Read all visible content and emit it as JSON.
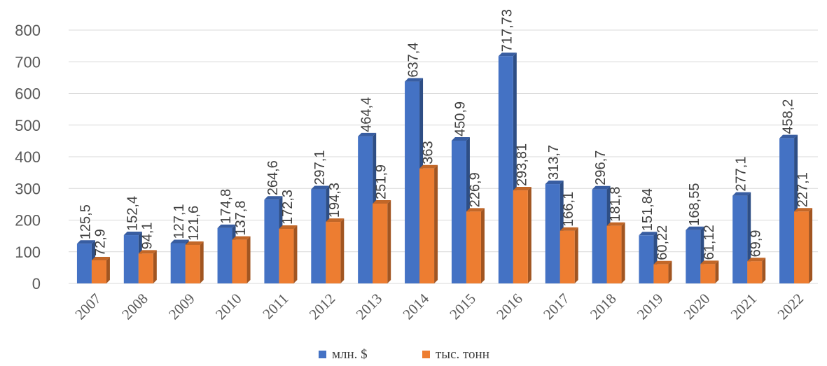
{
  "chart_data": {
    "type": "bar",
    "title": "",
    "xlabel": "",
    "ylabel": "",
    "ylim": [
      0,
      800
    ],
    "yticks": [
      "0",
      "100",
      "200",
      "300",
      "400",
      "500",
      "600",
      "700",
      "800"
    ],
    "grid": true,
    "legend_position": "bottom",
    "categories": [
      "2007",
      "2008",
      "2009",
      "2010",
      "2011",
      "2012",
      "2013",
      "2014",
      "2015",
      "2016",
      "2017",
      "2018",
      "2019",
      "2020",
      "2021",
      "2022"
    ],
    "series": [
      {
        "name": "млн. $",
        "color": "#4472c4",
        "values": [
          125.5,
          152.4,
          127.1,
          174.8,
          264.6,
          297.1,
          464.4,
          637.4,
          450.9,
          717.73,
          313.7,
          296.7,
          151.84,
          168.55,
          277.1,
          458.2
        ],
        "labels": [
          "125,5",
          "152,4",
          "127,1",
          "174,8",
          "264,6",
          "297,1",
          "464,4",
          "637,4",
          "450,9",
          "717,73",
          "313,7",
          "296,7",
          "151,84",
          "168,55",
          "277,1",
          "458,2"
        ]
      },
      {
        "name": "тыс. тонн",
        "color": "#ed7d31",
        "values": [
          72.9,
          94.1,
          121.6,
          137.8,
          172.3,
          194.3,
          251.9,
          363,
          226.9,
          293.81,
          166.1,
          181.8,
          60.22,
          61.12,
          69.9,
          227.1
        ],
        "labels": [
          "72,9",
          "94,1",
          "121,6",
          "137,8",
          "172,3",
          "194,3",
          "251,9",
          "363",
          "226,9",
          "293,81",
          "166,1",
          "181,8",
          "60,22",
          "61,12",
          "69,9",
          "227,1"
        ]
      }
    ]
  }
}
